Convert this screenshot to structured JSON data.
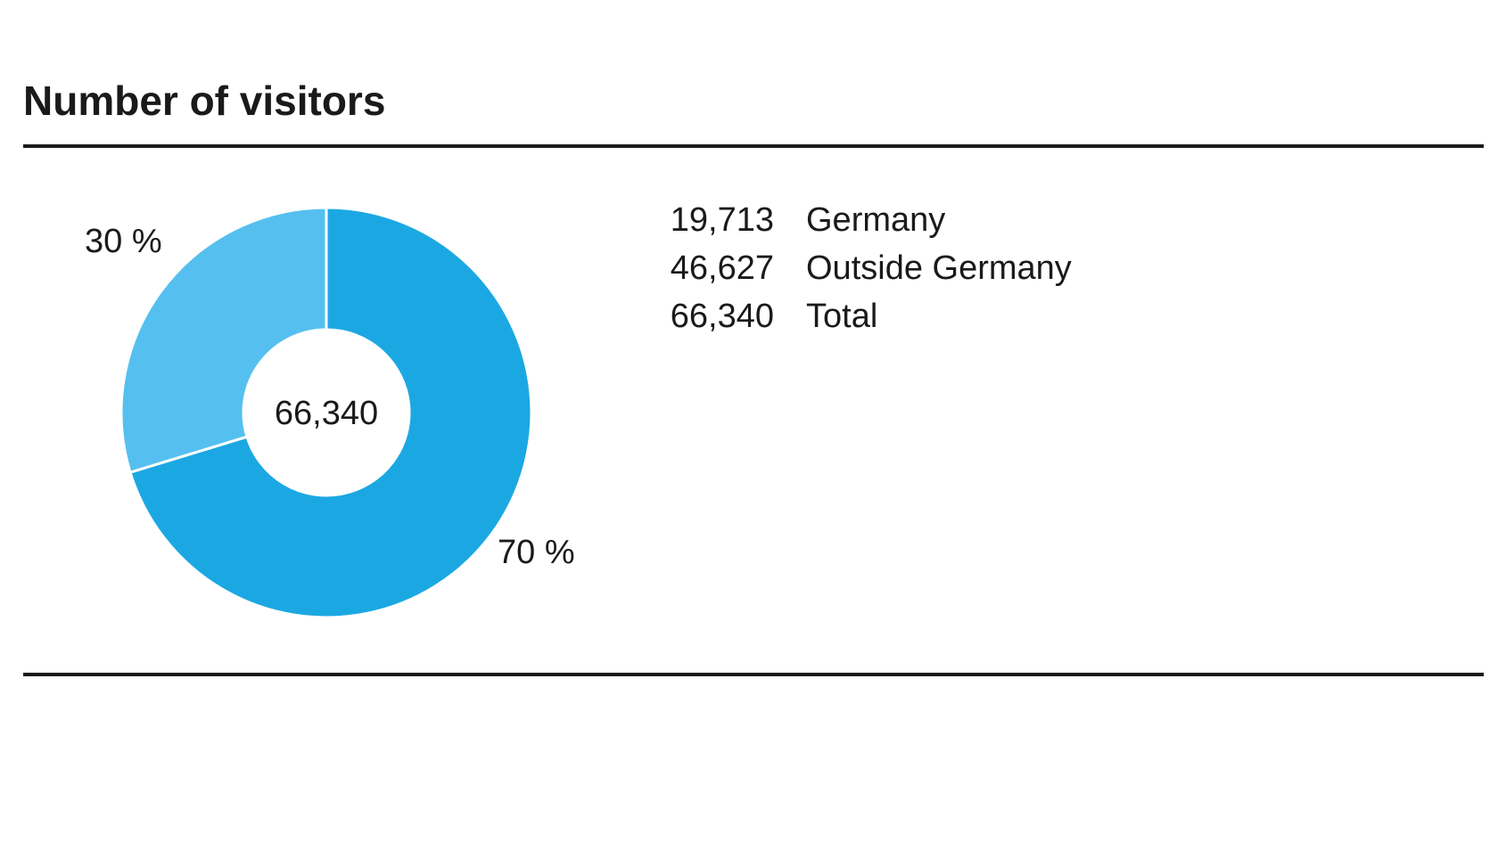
{
  "chart_data": {
    "type": "pie",
    "title": "Number of visitors",
    "center_label": "66,340",
    "slices": [
      {
        "label": "Outside Germany",
        "value": 46627,
        "percent_label": "70 %",
        "color": "#1ba8e2"
      },
      {
        "label": "Germany",
        "value": 19713,
        "percent_label": "30 %",
        "color": "#55c0ef"
      }
    ],
    "legend": [
      {
        "value": "19,713",
        "label": "Germany"
      },
      {
        "value": "46,627",
        "label": "Outside Germany"
      },
      {
        "value": "66,340",
        "label": "Total"
      }
    ]
  }
}
